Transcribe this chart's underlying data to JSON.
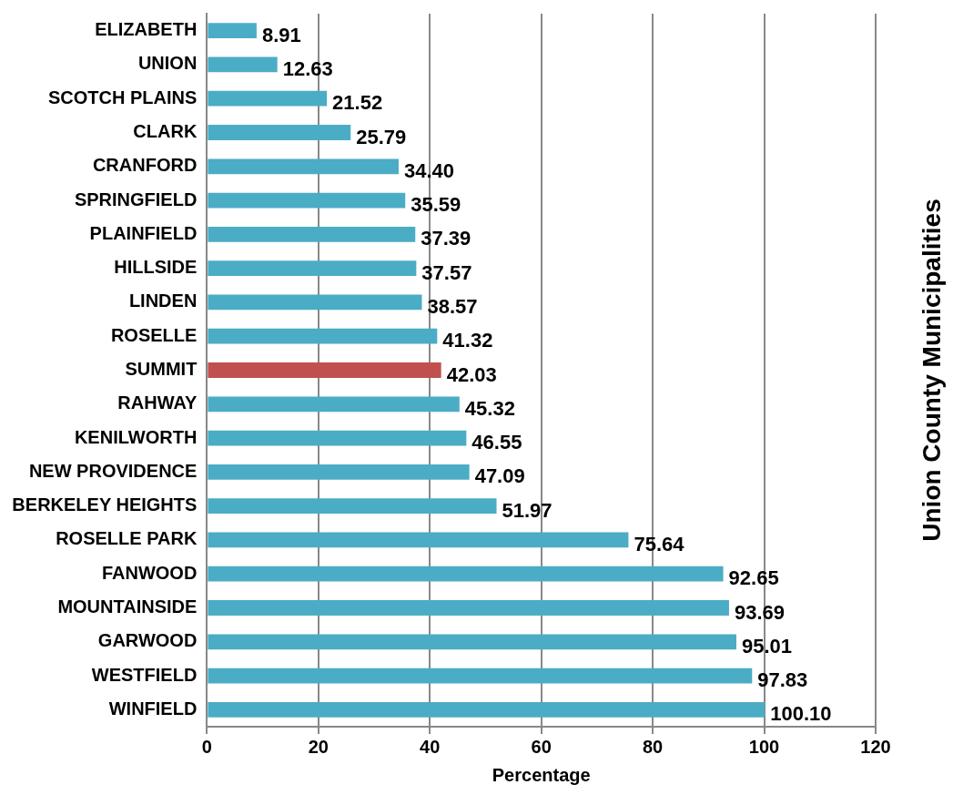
{
  "chart_data": {
    "type": "bar",
    "orientation": "horizontal",
    "xlabel": "Percentage",
    "ylabel": "Union County Municipalities",
    "categories": [
      "ELIZABETH",
      "UNION",
      "SCOTCH PLAINS",
      "CLARK",
      "CRANFORD",
      "SPRINGFIELD",
      "PLAINFIELD",
      "HILLSIDE",
      "LINDEN",
      "ROSELLE",
      "SUMMIT",
      "RAHWAY",
      "KENILWORTH",
      "NEW PROVIDENCE",
      "BERKELEY HEIGHTS",
      "ROSELLE PARK",
      "FANWOOD",
      "MOUNTAINSIDE",
      "GARWOOD",
      "WESTFIELD",
      "WINFIELD"
    ],
    "values": [
      8.91,
      12.63,
      21.52,
      25.79,
      34.4,
      35.59,
      37.39,
      37.57,
      38.57,
      41.32,
      42.03,
      45.32,
      46.55,
      47.09,
      51.97,
      75.64,
      92.65,
      93.69,
      95.01,
      97.83,
      100.1
    ],
    "value_labels": [
      "8.91",
      "12.63",
      "21.52",
      "25.79",
      "34.40",
      "35.59",
      "37.39",
      "37.57",
      "38.57",
      "41.32",
      "42.03",
      "45.32",
      "46.55",
      "47.09",
      "51.97",
      "75.64",
      "92.65",
      "93.69",
      "95.01",
      "97.83",
      "100.10"
    ],
    "colors": [
      "#4bacc6",
      "#4bacc6",
      "#4bacc6",
      "#4bacc6",
      "#4bacc6",
      "#4bacc6",
      "#4bacc6",
      "#4bacc6",
      "#4bacc6",
      "#4bacc6",
      "#c0504d",
      "#4bacc6",
      "#4bacc6",
      "#4bacc6",
      "#4bacc6",
      "#4bacc6",
      "#4bacc6",
      "#4bacc6",
      "#4bacc6",
      "#4bacc6",
      "#4bacc6"
    ],
    "xlim": [
      0,
      120
    ],
    "xticks": [
      0,
      20,
      40,
      60,
      80,
      100,
      120
    ],
    "grid": "x"
  }
}
